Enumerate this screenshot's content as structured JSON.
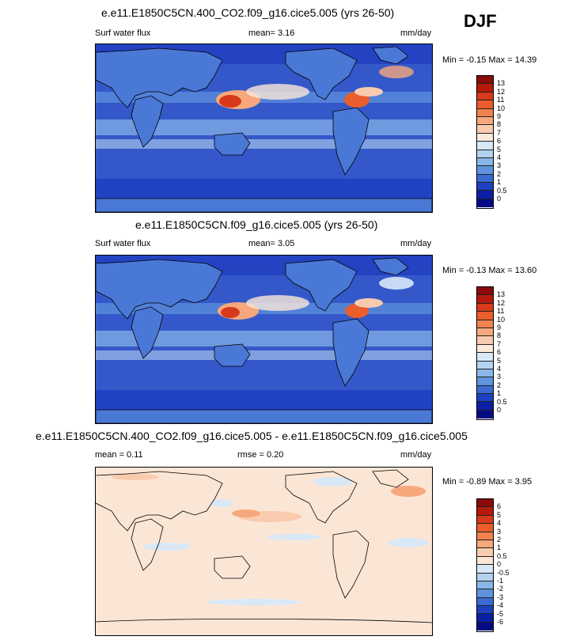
{
  "season": "DJF",
  "panels": [
    {
      "title": "e.e11.E1850C5CN.400_CO2.f09_g16.cice5.005 (yrs 26-50)",
      "left_label": "Surf water flux",
      "mean_text": "mean=  3.16",
      "units": "mm/day",
      "minmax": "Min = -0.15 Max = 14.39",
      "colorbar": {
        "labels": [
          "13",
          "12",
          "11",
          "10",
          "9",
          "8",
          "7",
          "6",
          "5",
          "4",
          "3",
          "2",
          "1",
          "0.5",
          "0"
        ],
        "colors": [
          "#8b0a0a",
          "#b51a0c",
          "#d8391a",
          "#ea5d2c",
          "#f2834f",
          "#f6a87c",
          "#f9cbae",
          "#fbe9d9",
          "#d8e8f7",
          "#b4d2f0",
          "#8ab6e8",
          "#5f93de",
          "#3b6ad3",
          "#1f3fc2",
          "#0b1ea6",
          "#050b85"
        ]
      },
      "ocean_color": "#3458c9",
      "land_color": "#4a78d6"
    },
    {
      "title": "e.e11.E1850C5CN.f09_g16.cice5.005 (yrs 26-50)",
      "left_label": "Surf water flux",
      "mean_text": "mean=  3.05",
      "units": "mm/day",
      "minmax": "Min = -0.13 Max = 13.60",
      "colorbar": {
        "labels": [
          "13",
          "12",
          "11",
          "10",
          "9",
          "8",
          "7",
          "6",
          "5",
          "4",
          "3",
          "2",
          "1",
          "0.5",
          "0"
        ],
        "colors": [
          "#8b0a0a",
          "#b51a0c",
          "#d8391a",
          "#ea5d2c",
          "#f2834f",
          "#f6a87c",
          "#f9cbae",
          "#fbe9d9",
          "#d8e8f7",
          "#b4d2f0",
          "#8ab6e8",
          "#5f93de",
          "#3b6ad3",
          "#1f3fc2",
          "#0b1ea6",
          "#050b85"
        ]
      },
      "ocean_color": "#3458c9",
      "land_color": "#4a78d6"
    },
    {
      "title": "e.e11.E1850C5CN.400_CO2.f09_g16.cice5.005 - e.e11.E1850C5CN.f09_g16.cice5.005",
      "mean_text": "mean =  0.11",
      "rmse_text": "rmse =  0.20",
      "units": "mm/day",
      "minmax": "Min = -0.89 Max =  3.95",
      "colorbar": {
        "labels": [
          "6",
          "5",
          "4",
          "3",
          "2",
          "1",
          "0.5",
          "0",
          "-0.5",
          "-1",
          "-2",
          "-3",
          "-4",
          "-5",
          "-6"
        ],
        "colors": [
          "#8b0a0a",
          "#b51a0c",
          "#d8391a",
          "#ea5d2c",
          "#f2834f",
          "#f6a87c",
          "#f9cbae",
          "#fbe6d6",
          "#d9e8f7",
          "#b4d2f0",
          "#8ab6e8",
          "#5f93de",
          "#3b6ad3",
          "#1f3fc2",
          "#0b1ea6",
          "#050b85"
        ]
      },
      "ocean_color": "#fbe6d6",
      "land_color": "#fbe6d6"
    }
  ]
}
